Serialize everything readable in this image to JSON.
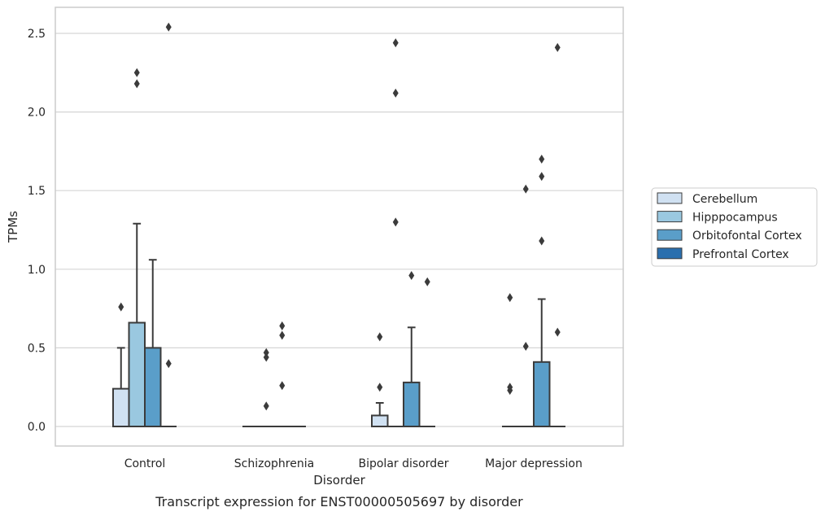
{
  "chart_data": {
    "type": "box",
    "xlabel": "Disorder",
    "ylabel": "TPMs",
    "caption": "Transcript expression for ENST00000505697 by disorder",
    "ylim": [
      -0.12,
      2.67
    ],
    "yticks": [
      0.0,
      0.5,
      1.0,
      1.5,
      2.0,
      2.5
    ],
    "ytick_labels": [
      "0.0",
      "0.5",
      "1.0",
      "1.5",
      "2.0",
      "2.5"
    ],
    "grid": "horizontal",
    "legend_position": "right",
    "categories": [
      "Control",
      "Schizophrenia",
      "Bipolar disorder",
      "Major depression"
    ],
    "series": [
      {
        "name": "Cerebellum",
        "color": "#d0e1f2",
        "boxes": [
          {
            "q1": 0.0,
            "median": 0.0,
            "q3": 0.24,
            "whisker_low": 0.0,
            "whisker_high": 0.5,
            "outliers": [
              0.76
            ]
          },
          {
            "q1": 0.0,
            "median": 0.0,
            "q3": 0.0,
            "whisker_low": 0.0,
            "whisker_high": 0.0,
            "outliers": []
          },
          {
            "q1": 0.0,
            "median": 0.0,
            "q3": 0.07,
            "whisker_low": 0.0,
            "whisker_high": 0.15,
            "outliers": [
              0.57,
              0.25
            ]
          },
          {
            "q1": 0.0,
            "median": 0.0,
            "q3": 0.0,
            "whisker_low": 0.0,
            "whisker_high": 0.0,
            "outliers": [
              0.82,
              0.25,
              0.23
            ]
          }
        ]
      },
      {
        "name": "Hipppocampus",
        "color": "#9ac8e0",
        "boxes": [
          {
            "q1": 0.0,
            "median": 0.0,
            "q3": 0.66,
            "whisker_low": 0.0,
            "whisker_high": 1.29,
            "outliers": [
              2.25,
              2.18
            ]
          },
          {
            "q1": 0.0,
            "median": 0.0,
            "q3": 0.0,
            "whisker_low": 0.0,
            "whisker_high": 0.0,
            "outliers": [
              0.47,
              0.44,
              0.13
            ]
          },
          {
            "q1": 0.0,
            "median": 0.0,
            "q3": 0.0,
            "whisker_low": 0.0,
            "whisker_high": 0.0,
            "outliers": [
              2.44,
              2.12,
              1.3
            ]
          },
          {
            "q1": 0.0,
            "median": 0.0,
            "q3": 0.0,
            "whisker_low": 0.0,
            "whisker_high": 0.0,
            "outliers": [
              1.51,
              0.51
            ]
          }
        ]
      },
      {
        "name": "Orbitofontal Cortex",
        "color": "#5a9ec9",
        "boxes": [
          {
            "q1": 0.0,
            "median": 0.0,
            "q3": 0.5,
            "whisker_low": 0.0,
            "whisker_high": 1.06,
            "outliers": []
          },
          {
            "q1": 0.0,
            "median": 0.0,
            "q3": 0.0,
            "whisker_low": 0.0,
            "whisker_high": 0.0,
            "outliers": [
              0.64,
              0.58,
              0.26
            ]
          },
          {
            "q1": 0.0,
            "median": 0.0,
            "q3": 0.28,
            "whisker_low": 0.0,
            "whisker_high": 0.63,
            "outliers": [
              0.96
            ]
          },
          {
            "q1": 0.0,
            "median": 0.0,
            "q3": 0.41,
            "whisker_low": 0.0,
            "whisker_high": 0.81,
            "outliers": [
              1.7,
              1.59,
              1.18
            ]
          }
        ]
      },
      {
        "name": "Prefrontal Cortex",
        "color": "#2a6fae",
        "boxes": [
          {
            "q1": 0.0,
            "median": 0.0,
            "q3": 0.0,
            "whisker_low": 0.0,
            "whisker_high": 0.0,
            "outliers": [
              2.54,
              0.4
            ]
          },
          {
            "q1": 0.0,
            "median": 0.0,
            "q3": 0.0,
            "whisker_low": 0.0,
            "whisker_high": 0.0,
            "outliers": []
          },
          {
            "q1": 0.0,
            "median": 0.0,
            "q3": 0.0,
            "whisker_low": 0.0,
            "whisker_high": 0.0,
            "outliers": [
              0.92
            ]
          },
          {
            "q1": 0.0,
            "median": 0.0,
            "q3": 0.0,
            "whisker_low": 0.0,
            "whisker_high": 0.0,
            "outliers": [
              2.41,
              0.6
            ]
          }
        ]
      }
    ]
  }
}
